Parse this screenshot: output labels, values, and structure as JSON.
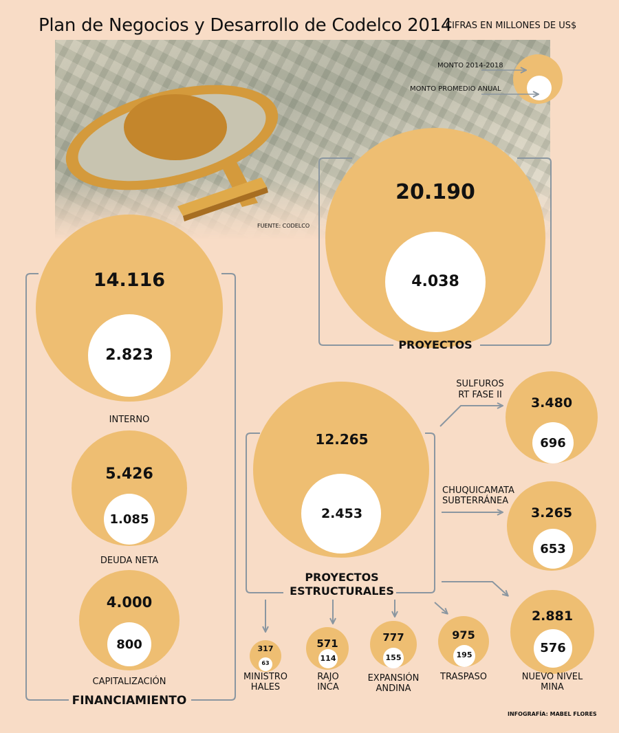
{
  "title": "Plan de Negocios y Desarrollo de Codelco 2014",
  "units": "CIFRAS EN MILLONES DE US$",
  "legend": {
    "total": "MONTO 2014-2018",
    "annual": "MONTO PROMEDIO ANUAL"
  },
  "source": "FUENTE: CODELCO",
  "credit": "INFOGRAFÍA: MABEL FLORES",
  "colors": {
    "background": "#f8dcc6",
    "bubble": "#eebe72",
    "inner": "#ffffff",
    "bracket": "#8a96a0"
  },
  "groups": {
    "projects_label": "PROYECTOS",
    "financing_label": "FINANCIAMIENTO",
    "structural_label_1": "PROYECTOS",
    "structural_label_2": "ESTRUCTURALES"
  },
  "proyectos": {
    "total": "20.190",
    "annual": "4.038"
  },
  "financiamiento": [
    {
      "label": "INTERNO",
      "total": "14.116",
      "annual": "2.823"
    },
    {
      "label": "DEUDA NETA",
      "total": "5.426",
      "annual": "1.085"
    },
    {
      "label": "CAPITALIZACIÓN",
      "total": "4.000",
      "annual": "800"
    }
  ],
  "estructurales": {
    "total": "12.265",
    "annual": "2.453"
  },
  "right_projects": [
    {
      "label_1": "SULFUROS",
      "label_2": "RT FASE II",
      "total": "3.480",
      "annual": "696"
    },
    {
      "label_1": "CHUQUICAMATA",
      "label_2": "SUBTERRÁNEA",
      "total": "3.265",
      "annual": "653"
    },
    {
      "label_1": "NUEVO NIVEL",
      "label_2": "MINA",
      "total": "2.881",
      "annual": "576"
    }
  ],
  "small_projects": [
    {
      "label_1": "MINISTRO",
      "label_2": "HALES",
      "total": "317",
      "annual": "63"
    },
    {
      "label_1": "RAJO",
      "label_2": "INCA",
      "total": "571",
      "annual": "114"
    },
    {
      "label_1": "EXPANSIÓN",
      "label_2": "ANDINA",
      "total": "777",
      "annual": "155"
    },
    {
      "label_1": "TRASPASO",
      "label_2": "",
      "total": "975",
      "annual": "195"
    }
  ]
}
